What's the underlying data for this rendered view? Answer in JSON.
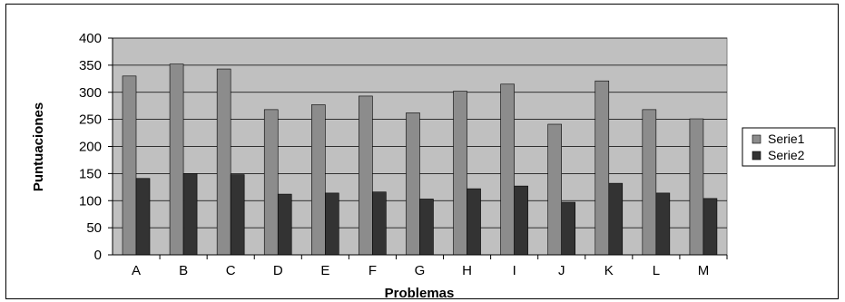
{
  "chart_data": {
    "type": "bar",
    "title": "",
    "xlabel": "Problemas",
    "ylabel": "Puntuaciones",
    "categories": [
      "A",
      "B",
      "C",
      "D",
      "E",
      "F",
      "G",
      "H",
      "I",
      "J",
      "K",
      "L",
      "M"
    ],
    "series": [
      {
        "name": "Serie1",
        "color": "#8c8c8c",
        "values": [
          330,
          352,
          343,
          268,
          277,
          293,
          262,
          302,
          315,
          241,
          321,
          268,
          251
        ]
      },
      {
        "name": "Serie2",
        "color": "#333333",
        "values": [
          141,
          150,
          148,
          112,
          114,
          116,
          103,
          122,
          127,
          97,
          132,
          114,
          104
        ]
      }
    ],
    "ylim": [
      0,
      400
    ],
    "yticks": [
      0,
      50,
      100,
      150,
      200,
      250,
      300,
      350,
      400
    ],
    "grid": true,
    "plot_background": "#c0c0c0",
    "legend_position": "right"
  }
}
